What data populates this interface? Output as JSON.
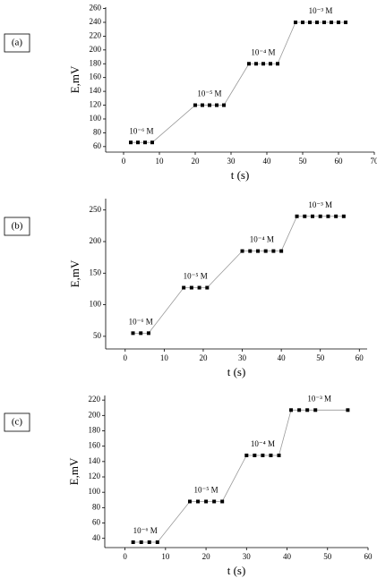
{
  "chart_data": [
    {
      "type": "line",
      "panel_label": "(a)",
      "x_label": "t (s)",
      "y_label": "E,mV",
      "xlim": [
        -5,
        70
      ],
      "ylim": [
        52,
        262
      ],
      "xticks": [
        0,
        10,
        20,
        30,
        40,
        50,
        60,
        70
      ],
      "yticks": [
        60,
        80,
        100,
        120,
        140,
        160,
        180,
        200,
        220,
        240,
        260
      ],
      "annotations": [
        "10⁻⁶ M",
        "10⁻⁵ M",
        "10⁻⁴ M",
        "10⁻³ M"
      ],
      "series": [
        {
          "color": "#000000",
          "line_color": "#999999",
          "x": [
            2,
            4,
            6,
            8,
            20,
            22,
            24,
            26,
            28,
            35,
            37,
            39,
            41,
            43,
            48,
            50,
            52,
            54,
            56,
            58,
            60,
            62
          ],
          "values": [
            66,
            66,
            66,
            66,
            120,
            120,
            120,
            120,
            120,
            180,
            180,
            180,
            180,
            180,
            240,
            240,
            240,
            240,
            240,
            240,
            240,
            240
          ]
        }
      ]
    },
    {
      "type": "line",
      "panel_label": "(b)",
      "x_label": "t (s)",
      "y_label": "E,mV",
      "xlim": [
        -5,
        62
      ],
      "ylim": [
        30,
        268
      ],
      "xticks": [
        0,
        10,
        20,
        30,
        40,
        50,
        60
      ],
      "yticks": [
        50,
        100,
        150,
        200,
        250
      ],
      "annotations": [
        "10⁻⁶ M",
        "10⁻⁵ M",
        "10⁻⁴ M",
        "10⁻³ M"
      ],
      "series": [
        {
          "color": "#000000",
          "line_color": "#999999",
          "x": [
            2,
            4,
            6,
            15,
            17,
            19,
            21,
            30,
            32,
            34,
            36,
            38,
            40,
            44,
            46,
            48,
            50,
            52,
            54,
            56
          ],
          "values": [
            55,
            55,
            55,
            127,
            127,
            127,
            127,
            185,
            185,
            185,
            185,
            185,
            185,
            240,
            240,
            240,
            240,
            240,
            240,
            240
          ]
        }
      ]
    },
    {
      "type": "line",
      "panel_label": "(c)",
      "x_label": "t (s)",
      "y_label": "E,mV",
      "xlim": [
        -5,
        60
      ],
      "ylim": [
        28,
        226
      ],
      "xticks": [
        0,
        10,
        20,
        30,
        40,
        50,
        60
      ],
      "yticks": [
        40,
        60,
        80,
        100,
        120,
        140,
        160,
        180,
        200,
        220
      ],
      "annotations": [
        "10⁻⁶ M",
        "10⁻⁵ M",
        "10⁻⁴ M",
        "10⁻³ M"
      ],
      "series": [
        {
          "color": "#000000",
          "line_color": "#999999",
          "x": [
            2,
            4,
            6,
            8,
            16,
            18,
            20,
            22,
            24,
            30,
            32,
            34,
            36,
            38,
            41,
            43,
            45,
            47,
            55
          ],
          "values": [
            35,
            35,
            35,
            35,
            88,
            88,
            88,
            88,
            88,
            148,
            148,
            148,
            148,
            148,
            207,
            207,
            207,
            207,
            207
          ]
        }
      ]
    }
  ]
}
